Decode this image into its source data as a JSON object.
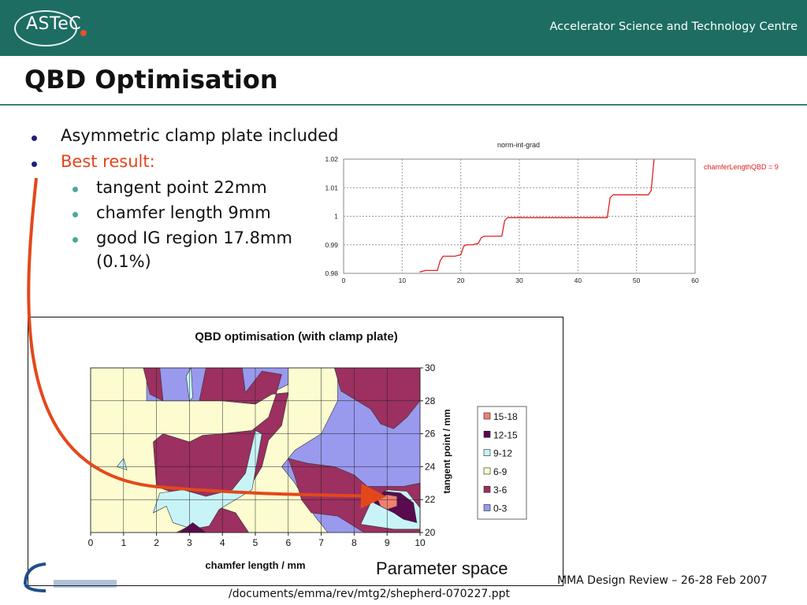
{
  "header": {
    "logo_text": "ASTeC",
    "organization": "Accelerator Science and Technology Centre",
    "colors": {
      "band": "#1d6d63",
      "logo_dot": "#e4512d"
    }
  },
  "slide": {
    "title": "QBD Optimisation",
    "bullets": [
      {
        "text": "Asymmetric clamp plate included",
        "level": 1
      },
      {
        "text": "Best result:",
        "level": 1,
        "color": "#e2451d"
      },
      {
        "text": "tangent point 22mm",
        "level": 2
      },
      {
        "text": "chamfer length 9mm",
        "level": 2
      },
      {
        "text": "good IG region 17.8mm",
        "level": 2
      },
      {
        "text": "(0.1%)",
        "level": 2
      }
    ],
    "annotation": "Parameter space"
  },
  "footer": {
    "event": "MMA Design Review – 26-28 Feb 2007",
    "path": "/documents/emma/rev/mtg2/shepherd-070227.ppt"
  },
  "chart_data": [
    {
      "type": "line",
      "title": "norm-int-grad",
      "xlim": [
        0,
        60
      ],
      "ylim": [
        0.98,
        1.02
      ],
      "xticks": [
        "0",
        "10",
        "20",
        "30",
        "40",
        "50",
        "60"
      ],
      "yticks": [
        "0.98",
        "0.99",
        "1",
        "1.01",
        "1.02"
      ],
      "grid": true,
      "legend": "right",
      "series": [
        {
          "name": "chamferLengthQBD = 9",
          "color": "#e02020",
          "x": [
            13,
            14,
            16,
            16.5,
            17,
            18,
            19,
            20,
            20.5,
            21,
            22,
            23,
            23.5,
            24,
            25,
            26,
            27,
            27.5,
            28,
            29,
            30,
            31,
            32,
            33,
            34,
            35,
            36,
            37,
            38,
            39,
            40,
            41,
            42,
            43,
            44,
            45,
            45.5,
            46,
            47,
            48,
            49,
            50,
            51,
            52,
            52.5,
            53
          ],
          "y": [
            0.9805,
            0.981,
            0.981,
            0.9845,
            0.986,
            0.986,
            0.986,
            0.9865,
            0.9895,
            0.99,
            0.99,
            0.9905,
            0.9925,
            0.993,
            0.993,
            0.993,
            0.993,
            0.9985,
            0.9995,
            0.9995,
            0.9995,
            0.9995,
            0.9995,
            0.9995,
            0.9995,
            0.9995,
            0.9995,
            0.9995,
            0.9995,
            0.9995,
            0.9995,
            0.9995,
            0.9995,
            0.9995,
            0.9995,
            0.9995,
            1.0065,
            1.0075,
            1.0075,
            1.0075,
            1.0075,
            1.0075,
            1.0075,
            1.0075,
            1.009,
            1.02
          ]
        }
      ]
    },
    {
      "type": "heatmap",
      "subtype": "contour",
      "title": "QBD optimisation (with clamp plate)",
      "xlabel": "chamfer length / mm",
      "ylabel": "tangent point / mm",
      "xlim": [
        0,
        10
      ],
      "ylim": [
        20,
        30
      ],
      "xticks": [
        "0",
        "1",
        "2",
        "3",
        "4",
        "5",
        "6",
        "7",
        "8",
        "9",
        "10"
      ],
      "yticks": [
        "20",
        "22",
        "24",
        "26",
        "28",
        "30"
      ],
      "legend": "right",
      "bands": [
        {
          "name": "15-18",
          "color": "#f08070"
        },
        {
          "name": "12-15",
          "color": "#5a0a4e"
        },
        {
          "name": "9-12",
          "color": "#c8f4f8"
        },
        {
          "name": "6-9",
          "color": "#fcfcd0"
        },
        {
          "name": "3-6",
          "color": "#9c3060"
        },
        {
          "name": "0-3",
          "color": "#9999ee"
        }
      ],
      "best_point": {
        "x": 9,
        "y": 22
      }
    }
  ]
}
